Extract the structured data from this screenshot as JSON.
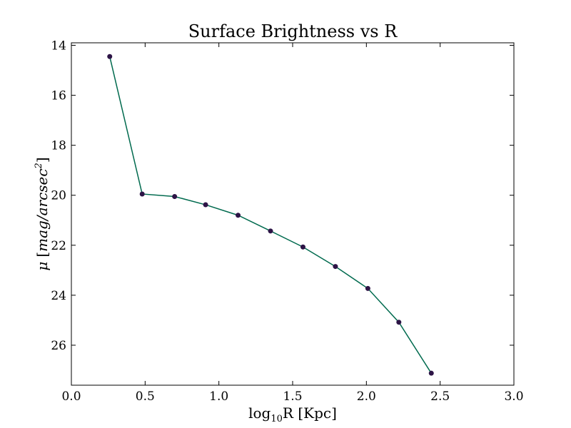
{
  "chart_data": {
    "type": "line",
    "title": "Surface Brightness vs R",
    "xlabel": {
      "prefix": "log",
      "subscript": "10",
      "suffix": "R [Kpc]"
    },
    "ylabel": {
      "symbol": "μ",
      "unit_open": "[",
      "unit": "mag/arcsec",
      "unit_exponent": "2",
      "unit_close": "]"
    },
    "xlim": [
      0.0,
      3.0
    ],
    "ylim": [
      27.6,
      13.9
    ],
    "y_inverted": true,
    "xticks": [
      0.0,
      0.5,
      1.0,
      1.5,
      2.0,
      2.5,
      3.0
    ],
    "xtick_labels": [
      "0.0",
      "0.5",
      "1.0",
      "1.5",
      "2.0",
      "2.5",
      "3.0"
    ],
    "yticks": [
      14,
      16,
      18,
      20,
      22,
      24,
      26
    ],
    "ytick_labels": [
      "14",
      "16",
      "18",
      "20",
      "22",
      "24",
      "26"
    ],
    "grid": false,
    "series": [
      {
        "x": [
          0.26,
          0.48,
          0.7,
          0.91,
          1.13,
          1.35,
          1.57,
          1.79,
          2.01,
          2.22,
          2.44
        ],
        "y": [
          14.45,
          19.95,
          20.05,
          20.38,
          20.8,
          21.43,
          22.07,
          22.85,
          23.73,
          25.08,
          27.12
        ],
        "line_color": "#006a4e",
        "marker_color": "#2d1446"
      }
    ]
  }
}
